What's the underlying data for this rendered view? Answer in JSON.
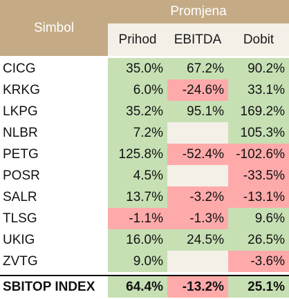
{
  "header": {
    "symbol_label": "Simbol",
    "group_label": "Promjena",
    "columns": [
      "Prihod",
      "EBITDA",
      "Dobit"
    ]
  },
  "rows": [
    {
      "symbol": "CICG",
      "prihod": "35.0%",
      "ebitda": "67.2%",
      "dobit": "90.2%"
    },
    {
      "symbol": "KRKG",
      "prihod": "6.0%",
      "ebitda": "-24.6%",
      "dobit": "33.1%"
    },
    {
      "symbol": "LKPG",
      "prihod": "35.2%",
      "ebitda": "95.1%",
      "dobit": "169.2%"
    },
    {
      "symbol": "NLBR",
      "prihod": "7.2%",
      "ebitda": "",
      "dobit": "105.3%"
    },
    {
      "symbol": "PETG",
      "prihod": "125.8%",
      "ebitda": "-52.4%",
      "dobit": "-102.6%"
    },
    {
      "symbol": "POSR",
      "prihod": "4.5%",
      "ebitda": "",
      "dobit": "-33.5%"
    },
    {
      "symbol": "SALR",
      "prihod": "13.7%",
      "ebitda": "-3.2%",
      "dobit": "-13.1%"
    },
    {
      "symbol": "TLSG",
      "prihod": "-1.1%",
      "ebitda": "-1.3%",
      "dobit": "9.6%"
    },
    {
      "symbol": "UKIG",
      "prihod": "16.0%",
      "ebitda": "24.5%",
      "dobit": "26.5%"
    },
    {
      "symbol": "ZVTG",
      "prihod": "9.0%",
      "ebitda": "",
      "dobit": "-3.6%"
    }
  ],
  "total": {
    "symbol": "SBITOP INDEX",
    "prihod": "64.4%",
    "ebitda": "-13.2%",
    "dobit": "25.1%"
  },
  "colors": {
    "header": "#c4ab86",
    "positive": "#c6e0b4",
    "negative": "#ffaaaa",
    "empty": "#f4f0e8"
  }
}
